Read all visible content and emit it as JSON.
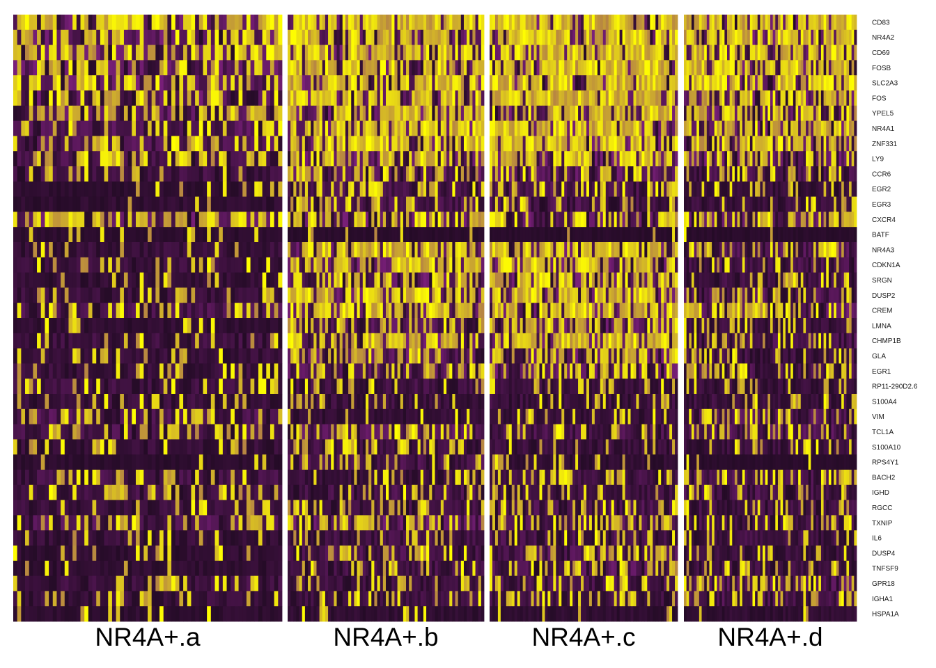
{
  "chart_data": {
    "type": "heatmap",
    "title": "",
    "xlabel": "",
    "ylabel": "",
    "colors": {
      "low": "#1f0a21",
      "mid": "#7a1f7a",
      "high": "#ffff00",
      "background": "#ffffff"
    },
    "clusters": [
      {
        "name": "NR4A+.a"
      },
      {
        "name": "NR4A+.b"
      },
      {
        "name": "NR4A+.c"
      },
      {
        "name": "NR4A+.d"
      }
    ],
    "genes": [
      "CD83",
      "NR4A2",
      "CD69",
      "FOSB",
      "SLC2A3",
      "FOS",
      "YPEL5",
      "NR4A1",
      "ZNF331",
      "LY9",
      "CCR6",
      "EGR2",
      "EGR3",
      "CXCR4",
      "BATF",
      "NR4A3",
      "CDKN1A",
      "SRGN",
      "DUSP2",
      "CREM",
      "LMNA",
      "CHMP1B",
      "GLA",
      "EGR1",
      "RP11-290D2.6",
      "S100A4",
      "VIM",
      "TCL1A",
      "S100A10",
      "RPS4Y1",
      "BACH2",
      "IGHD",
      "RGCC",
      "TXNIP",
      "IL6",
      "DUSP4",
      "TNFSF9",
      "GPR18",
      "IGHA1",
      "HSPA1A"
    ],
    "mean_expression": [
      [
        0.62,
        0.8,
        0.78,
        0.8
      ],
      [
        0.58,
        0.78,
        0.8,
        0.75
      ],
      [
        0.55,
        0.75,
        0.82,
        0.72
      ],
      [
        0.52,
        0.72,
        0.78,
        0.7
      ],
      [
        0.5,
        0.78,
        0.8,
        0.72
      ],
      [
        0.45,
        0.72,
        0.78,
        0.65
      ],
      [
        0.42,
        0.7,
        0.75,
        0.6
      ],
      [
        0.38,
        0.75,
        0.85,
        0.62
      ],
      [
        0.35,
        0.72,
        0.85,
        0.68
      ],
      [
        0.3,
        0.55,
        0.6,
        0.45
      ],
      [
        0.25,
        0.4,
        0.45,
        0.32
      ],
      [
        0.1,
        0.3,
        0.35,
        0.18
      ],
      [
        0.12,
        0.32,
        0.3,
        0.2
      ],
      [
        0.55,
        0.5,
        0.48,
        0.55
      ],
      [
        0.08,
        0.05,
        0.05,
        0.05
      ],
      [
        0.18,
        0.7,
        0.82,
        0.35
      ],
      [
        0.2,
        0.6,
        0.75,
        0.3
      ],
      [
        0.15,
        0.62,
        0.7,
        0.28
      ],
      [
        0.2,
        0.7,
        0.72,
        0.35
      ],
      [
        0.3,
        0.72,
        0.72,
        0.55
      ],
      [
        0.12,
        0.4,
        0.55,
        0.2
      ],
      [
        0.22,
        0.6,
        0.75,
        0.3
      ],
      [
        0.18,
        0.45,
        0.55,
        0.25
      ],
      [
        0.2,
        0.4,
        0.45,
        0.3
      ],
      [
        0.22,
        0.25,
        0.2,
        0.2
      ],
      [
        0.2,
        0.22,
        0.22,
        0.22
      ],
      [
        0.35,
        0.15,
        0.18,
        0.35
      ],
      [
        0.3,
        0.4,
        0.3,
        0.35
      ],
      [
        0.18,
        0.25,
        0.2,
        0.2
      ],
      [
        0.08,
        0.3,
        0.12,
        0.05
      ],
      [
        0.28,
        0.2,
        0.25,
        0.35
      ],
      [
        0.25,
        0.3,
        0.22,
        0.3
      ],
      [
        0.2,
        0.25,
        0.3,
        0.25
      ],
      [
        0.4,
        0.45,
        0.35,
        0.3
      ],
      [
        0.18,
        0.25,
        0.3,
        0.25
      ],
      [
        0.12,
        0.3,
        0.35,
        0.2
      ],
      [
        0.12,
        0.28,
        0.4,
        0.22
      ],
      [
        0.25,
        0.22,
        0.3,
        0.4
      ],
      [
        0.2,
        0.22,
        0.25,
        0.3
      ],
      [
        0.1,
        0.12,
        0.12,
        0.12
      ]
    ]
  }
}
